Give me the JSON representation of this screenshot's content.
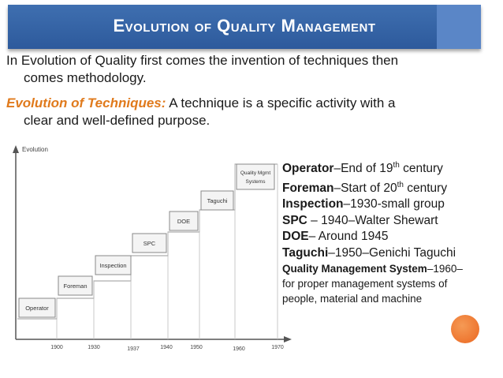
{
  "slide": {
    "title": "Evolution of Quality Management",
    "intro_line1": "In Evolution of Quality first comes the invention of techniques then",
    "intro_line2": "comes methodology.",
    "tech_heading": "Evolution of Techniques:",
    "tech_line1_rest": " A technique is a specific activity with a",
    "tech_line2": "clear and well-defined purpose.",
    "accent_color": "#e07a1c",
    "title_bar_color": "#2f5d9f"
  },
  "chart": {
    "y_axis_label": "Evolution",
    "steps": [
      "Operator",
      "Foreman",
      "Inspection",
      "SPC",
      "DOE",
      "Taguchi",
      "Quality Mgmt",
      "Systems"
    ],
    "years": [
      "1900",
      "1930",
      "1937",
      "1940",
      "1950",
      "1960",
      "1970"
    ]
  },
  "list": {
    "operator_b": "Operator",
    "operator_t": "–End of 19",
    "operator_sup": "th",
    "operator_t2": " century",
    "foreman_b": "Foreman",
    "foreman_t": "–Start of 20",
    "foreman_sup": "th",
    "foreman_t2": " century",
    "inspection_b": "Inspection",
    "inspection_t": "–1930-small group",
    "spc_b": "SPC",
    "spc_t": " – 1940–Walter Shewart",
    "doe_b": "DOE",
    "doe_t": "– Around 1945",
    "taguchi_b": "Taguchi",
    "taguchi_t": "–1950–Genichi Taguchi",
    "qms_b": "Quality Management System",
    "qms_t": "–1960–",
    "qms_line2": "for proper management systems of",
    "qms_line3": "people, material and machine"
  }
}
